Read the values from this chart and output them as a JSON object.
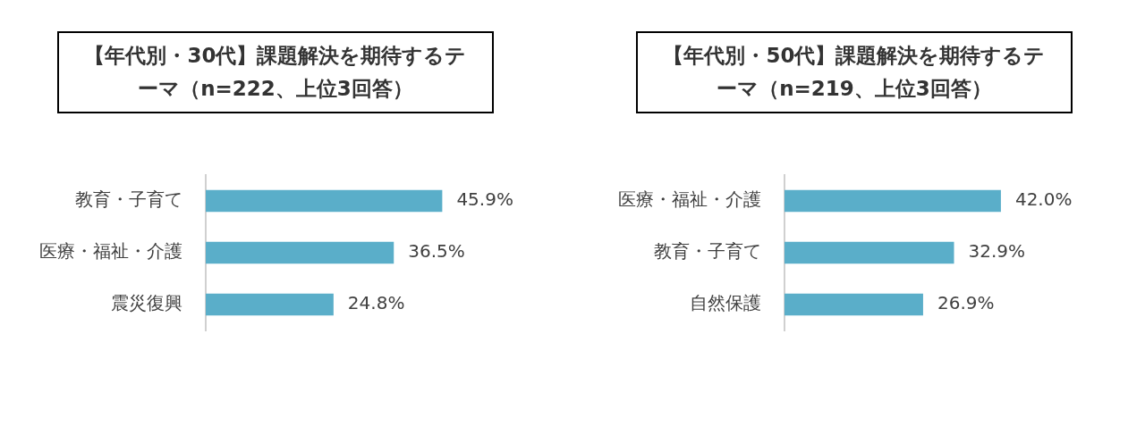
{
  "chart_data": [
    {
      "type": "bar",
      "orientation": "horizontal",
      "title": "【年代別・30代】課題解決を期待するテーマ（n=222、上位3回答）",
      "categories": [
        "教育・子育て",
        "医療・福祉・介護",
        "震災復興"
      ],
      "values": [
        45.9,
        36.5,
        24.8
      ],
      "value_labels": [
        "45.9%",
        "36.5%",
        "24.8%"
      ],
      "color": "#5aaec9",
      "grid": false,
      "legend": false,
      "tick_labels": "y"
    },
    {
      "type": "bar",
      "orientation": "horizontal",
      "title": "【年代別・50代】課題解決を期待するテーマ（n=219、上位3回答）",
      "categories": [
        "医療・福祉・介護",
        "教育・子育て",
        "自然保護"
      ],
      "values": [
        42.0,
        32.9,
        26.9
      ],
      "value_labels": [
        "42.0%",
        "32.9%",
        "26.9%"
      ],
      "color": "#5aaec9",
      "grid": false,
      "legend": false,
      "tick_labels": "y"
    }
  ]
}
